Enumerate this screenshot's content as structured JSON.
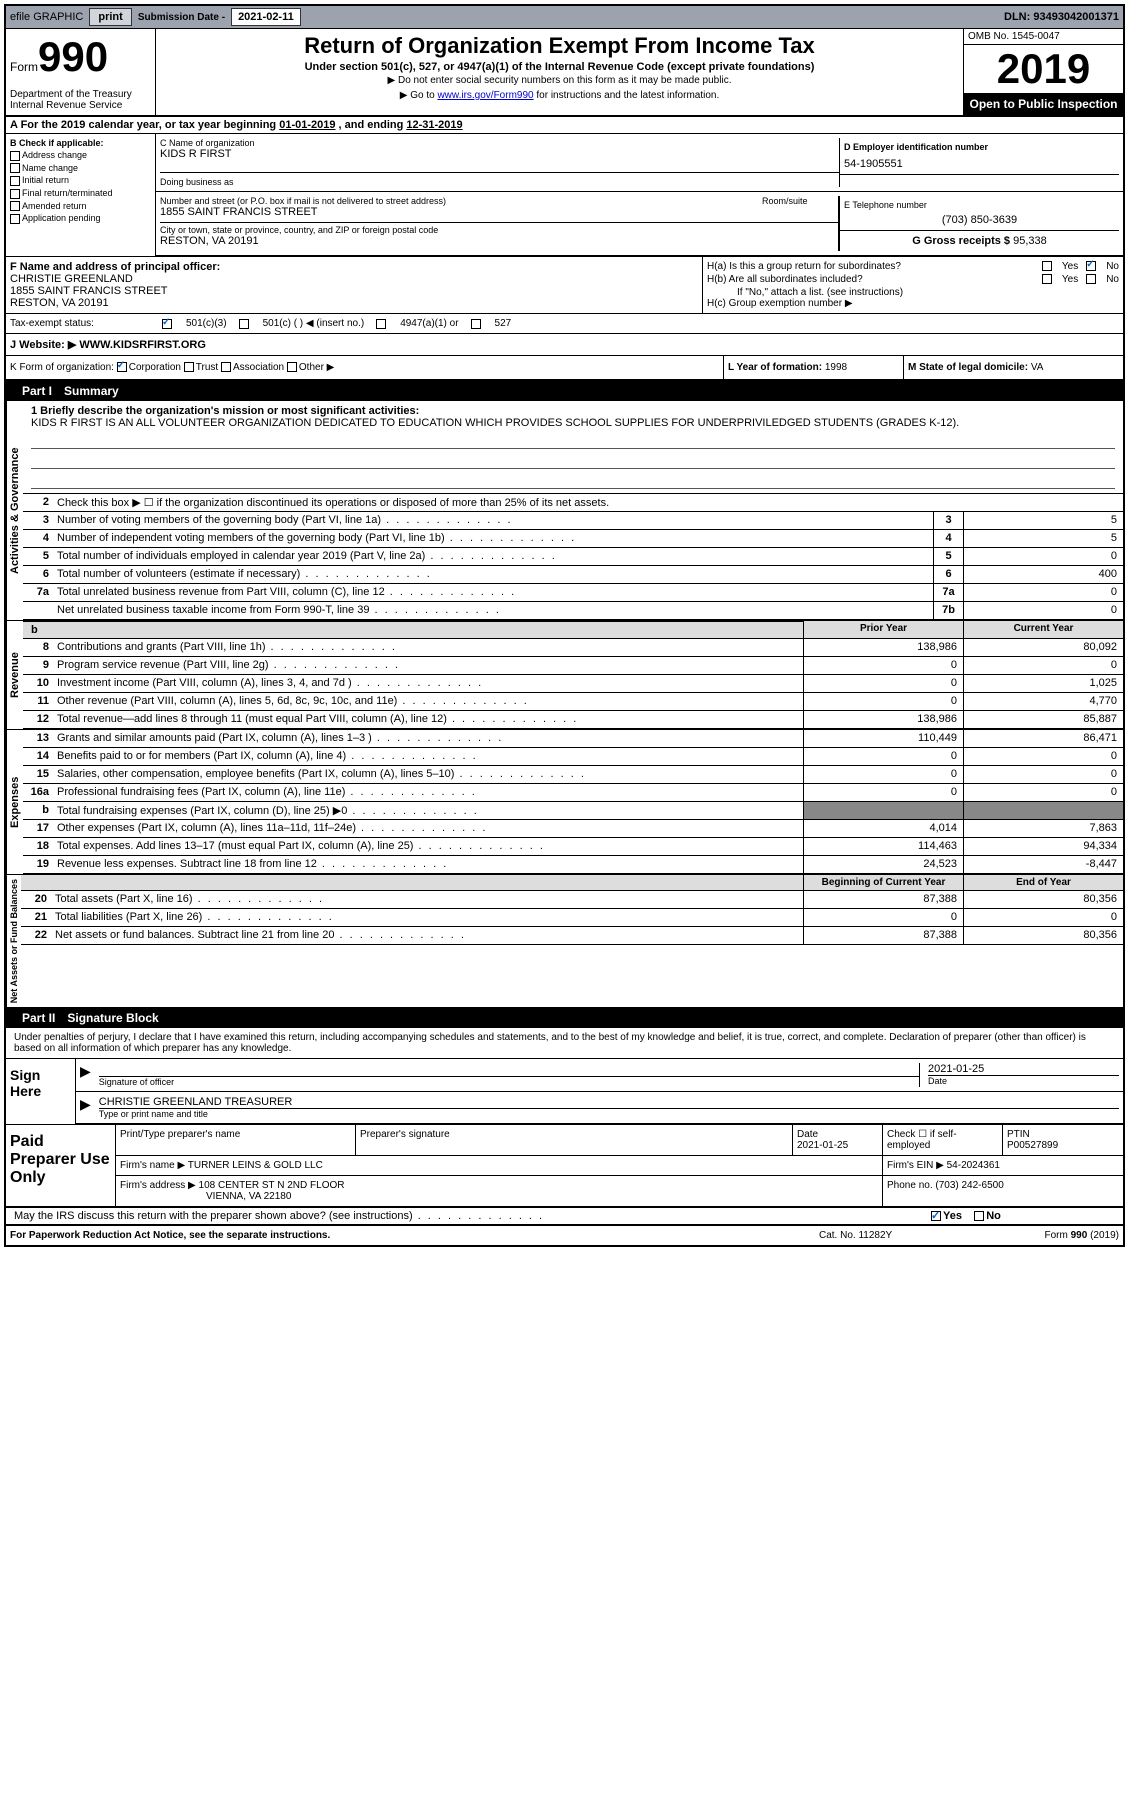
{
  "topbar": {
    "efile_label": "efile GRAPHIC",
    "print_btn": "print",
    "submission_label": "Submission Date - ",
    "submission_date": "2021-02-11",
    "dln_label": "DLN: ",
    "dln": "93493042001371"
  },
  "header": {
    "form_label": "Form",
    "form_num": "990",
    "title": "Return of Organization Exempt From Income Tax",
    "subtitle": "Under section 501(c), 527, or 4947(a)(1) of the Internal Revenue Code (except private foundations)",
    "note1": "▶ Do not enter social security numbers on this form as it may be made public.",
    "note2_pre": "▶ Go to ",
    "note2_link": "www.irs.gov/Form990",
    "note2_post": " for instructions and the latest information.",
    "dept": "Department of the Treasury\nInternal Revenue Service",
    "omb": "OMB No. 1545-0047",
    "year": "2019",
    "open_public": "Open to Public Inspection"
  },
  "period": {
    "text_pre": "A For the 2019 calendar year, or tax year beginning ",
    "begin": "01-01-2019",
    "text_mid": " , and ending ",
    "end": "12-31-2019"
  },
  "section_b": {
    "label": "B Check if applicable:",
    "items": [
      "Address change",
      "Name change",
      "Initial return",
      "Final return/terminated",
      "Amended return",
      "Application pending"
    ]
  },
  "section_c": {
    "name_label": "C Name of organization",
    "name": "KIDS R FIRST",
    "dba_label": "Doing business as",
    "dba": "",
    "addr_label": "Number and street (or P.O. box if mail is not delivered to street address)",
    "suite_label": "Room/suite",
    "addr": "1855 SAINT FRANCIS STREET",
    "city_label": "City or town, state or province, country, and ZIP or foreign postal code",
    "city": "RESTON, VA  20191"
  },
  "section_d": {
    "label": "D Employer identification number",
    "value": "54-1905551"
  },
  "section_e": {
    "label": "E Telephone number",
    "value": "(703) 850-3639"
  },
  "section_g": {
    "label": "G Gross receipts $ ",
    "value": "95,338"
  },
  "section_f": {
    "label": "F Name and address of principal officer:",
    "name": "CHRISTIE GREENLAND",
    "addr": "1855 SAINT FRANCIS STREET",
    "city": "RESTON, VA  20191"
  },
  "section_h": {
    "ha_label": "H(a)  Is this a group return for subordinates?",
    "hb_label": "H(b)  Are all subordinates included?",
    "hb_note": "If \"No,\" attach a list. (see instructions)",
    "hc_label": "H(c)  Group exemption number ▶",
    "yes": "Yes",
    "no": "No"
  },
  "section_i": {
    "label": "Tax-exempt status:",
    "opt1": "501(c)(3)",
    "opt2": "501(c) (  ) ◀ (insert no.)",
    "opt3": "4947(a)(1) or",
    "opt4": "527"
  },
  "section_j": {
    "label": "J   Website: ▶",
    "value": "WWW.KIDSRFIRST.ORG"
  },
  "section_k": {
    "label": "K Form of organization:",
    "opts": [
      "Corporation",
      "Trust",
      "Association",
      "Other ▶"
    ]
  },
  "section_l": {
    "label": "L Year of formation: ",
    "value": "1998"
  },
  "section_m": {
    "label": "M State of legal domicile: ",
    "value": "VA"
  },
  "part1": {
    "header_num": "Part I",
    "header_title": "Summary",
    "line1_label": "1  Briefly describe the organization's mission or most significant activities:",
    "mission": "KIDS R FIRST IS AN ALL VOLUNTEER ORGANIZATION DEDICATED TO EDUCATION WHICH PROVIDES SCHOOL SUPPLIES FOR UNDERPRIVILEDGED STUDENTS (GRADES K-12).",
    "line2": "Check this box ▶ ☐ if the organization discontinued its operations or disposed of more than 25% of its net assets.",
    "vlabel_ag": "Activities & Governance",
    "vlabel_rev": "Revenue",
    "vlabel_exp": "Expenses",
    "vlabel_na": "Net Assets or Fund Balances",
    "prior_year": "Prior Year",
    "current_year": "Current Year",
    "begin_year": "Beginning of Current Year",
    "end_year": "End of Year",
    "rows_ag": [
      {
        "n": "3",
        "d": "Number of voting members of the governing body (Part VI, line 1a)",
        "box": "3",
        "v": "5"
      },
      {
        "n": "4",
        "d": "Number of independent voting members of the governing body (Part VI, line 1b)",
        "box": "4",
        "v": "5"
      },
      {
        "n": "5",
        "d": "Total number of individuals employed in calendar year 2019 (Part V, line 2a)",
        "box": "5",
        "v": "0"
      },
      {
        "n": "6",
        "d": "Total number of volunteers (estimate if necessary)",
        "box": "6",
        "v": "400"
      },
      {
        "n": "7a",
        "d": "Total unrelated business revenue from Part VIII, column (C), line 12",
        "box": "7a",
        "v": "0"
      },
      {
        "n": "",
        "d": "Net unrelated business taxable income from Form 990-T, line 39",
        "box": "7b",
        "v": "0"
      }
    ],
    "rows_rev": [
      {
        "n": "8",
        "d": "Contributions and grants (Part VIII, line 1h)",
        "py": "138,986",
        "cy": "80,092"
      },
      {
        "n": "9",
        "d": "Program service revenue (Part VIII, line 2g)",
        "py": "0",
        "cy": "0"
      },
      {
        "n": "10",
        "d": "Investment income (Part VIII, column (A), lines 3, 4, and 7d )",
        "py": "0",
        "cy": "1,025"
      },
      {
        "n": "11",
        "d": "Other revenue (Part VIII, column (A), lines 5, 6d, 8c, 9c, 10c, and 11e)",
        "py": "0",
        "cy": "4,770"
      },
      {
        "n": "12",
        "d": "Total revenue—add lines 8 through 11 (must equal Part VIII, column (A), line 12)",
        "py": "138,986",
        "cy": "85,887"
      }
    ],
    "rows_exp": [
      {
        "n": "13",
        "d": "Grants and similar amounts paid (Part IX, column (A), lines 1–3 )",
        "py": "110,449",
        "cy": "86,471"
      },
      {
        "n": "14",
        "d": "Benefits paid to or for members (Part IX, column (A), line 4)",
        "py": "0",
        "cy": "0"
      },
      {
        "n": "15",
        "d": "Salaries, other compensation, employee benefits (Part IX, column (A), lines 5–10)",
        "py": "0",
        "cy": "0"
      },
      {
        "n": "16a",
        "d": "Professional fundraising fees (Part IX, column (A), line 11e)",
        "py": "0",
        "cy": "0"
      },
      {
        "n": "b",
        "d": "Total fundraising expenses (Part IX, column (D), line 25) ▶0",
        "py": "",
        "cy": "",
        "shaded": true
      },
      {
        "n": "17",
        "d": "Other expenses (Part IX, column (A), lines 11a–11d, 11f–24e)",
        "py": "4,014",
        "cy": "7,863"
      },
      {
        "n": "18",
        "d": "Total expenses. Add lines 13–17 (must equal Part IX, column (A), line 25)",
        "py": "114,463",
        "cy": "94,334"
      },
      {
        "n": "19",
        "d": "Revenue less expenses. Subtract line 18 from line 12",
        "py": "24,523",
        "cy": "-8,447"
      }
    ],
    "rows_na": [
      {
        "n": "20",
        "d": "Total assets (Part X, line 16)",
        "py": "87,388",
        "cy": "80,356"
      },
      {
        "n": "21",
        "d": "Total liabilities (Part X, line 26)",
        "py": "0",
        "cy": "0"
      },
      {
        "n": "22",
        "d": "Net assets or fund balances. Subtract line 21 from line 20",
        "py": "87,388",
        "cy": "80,356"
      }
    ]
  },
  "part2": {
    "header_num": "Part II",
    "header_title": "Signature Block",
    "penalty": "Under penalties of perjury, I declare that I have examined this return, including accompanying schedules and statements, and to the best of my knowledge and belief, it is true, correct, and complete. Declaration of preparer (other than officer) is based on all information of which preparer has any knowledge.",
    "sign_here": "Sign Here",
    "sig_officer": "Signature of officer",
    "sig_date_label": "Date",
    "sig_date": "2021-01-25",
    "officer_name": "CHRISTIE GREENLAND  TREASURER",
    "type_name": "Type or print name and title",
    "paid_prep": "Paid Preparer Use Only",
    "prep_name_label": "Print/Type preparer's name",
    "prep_sig_label": "Preparer's signature",
    "prep_date_label": "Date",
    "prep_date": "2021-01-25",
    "check_self": "Check ☐ if self-employed",
    "ptin_label": "PTIN",
    "ptin": "P00527899",
    "firm_name_label": "Firm's name     ▶",
    "firm_name": "TURNER LEINS & GOLD LLC",
    "firm_ein_label": "Firm's EIN ▶",
    "firm_ein": "54-2024361",
    "firm_addr_label": "Firm's address ▶",
    "firm_addr": "108 CENTER ST N 2ND FLOOR",
    "firm_city": "VIENNA, VA  22180",
    "phone_label": "Phone no. ",
    "phone": "(703) 242-6500",
    "discuss": "May the IRS discuss this return with the preparer shown above? (see instructions)",
    "yes": "Yes",
    "no": "No"
  },
  "footer": {
    "paperwork": "For Paperwork Reduction Act Notice, see the separate instructions.",
    "cat": "Cat. No. 11282Y",
    "form": "Form 990 (2019)"
  }
}
